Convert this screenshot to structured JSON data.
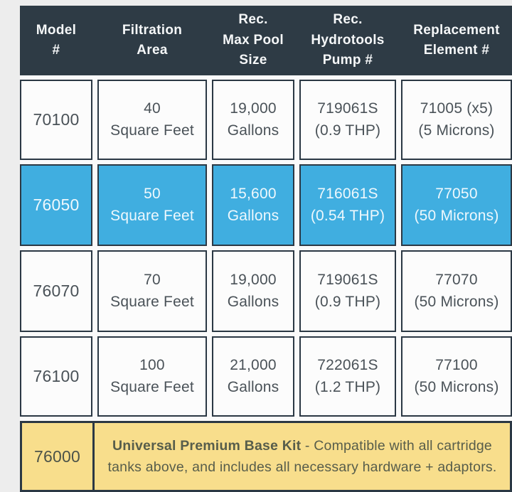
{
  "colors": {
    "page_bg": "#ededed",
    "table_gap_bg": "#fafafa",
    "header_bg": "#2e3b45",
    "border": "#2b3844",
    "cell_bg": "#fcfcfc",
    "highlight_bg": "#40aee0",
    "base_bg": "#f8de8c",
    "header_text": "#f5f7f8",
    "body_text": "#4a5258",
    "highlight_text": "#eef8fd",
    "base_text": "#575d4b"
  },
  "table": {
    "headers": {
      "model": "Model\n#",
      "filtration": "Filtration\nArea",
      "pool": "Rec.\nMax Pool\nSize",
      "pump": "Rec.\nHydrotools\nPump #",
      "element": "Replacement\nElement #"
    },
    "rows": [
      {
        "model": "70100",
        "filtration": "40\nSquare Feet",
        "pool": "19,000\nGallons",
        "pump": "719061S\n(0.9 THP)",
        "element": "71005 (x5)\n(5 Microns)",
        "highlighted": false
      },
      {
        "model": "76050",
        "filtration": "50\nSquare Feet",
        "pool": "15,600\nGallons",
        "pump": "716061S\n(0.54 THP)",
        "element": "77050\n(50 Microns)",
        "highlighted": true
      },
      {
        "model": "76070",
        "filtration": "70\nSquare Feet",
        "pool": "19,000\nGallons",
        "pump": "719061S\n(0.9 THP)",
        "element": "77070\n(50 Microns)",
        "highlighted": false
      },
      {
        "model": "76100",
        "filtration": "100\nSquare Feet",
        "pool": "21,000\nGallons",
        "pump": "722061S\n(1.2 THP)",
        "element": "77100\n(50 Microns)",
        "highlighted": false
      }
    ],
    "base_row": {
      "model": "76000",
      "title": "Universal Premium Base Kit",
      "description": " - Compatible with all cartridge tanks above, and includes all necessary hardware + adaptors."
    }
  }
}
